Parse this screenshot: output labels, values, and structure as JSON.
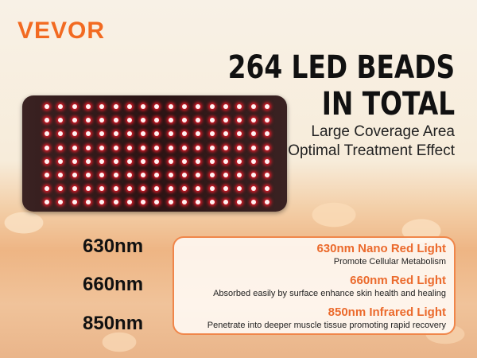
{
  "brand": {
    "logo": "VEVOR",
    "color": "#f26a21"
  },
  "headline": {
    "line1": "264 LED BEADS",
    "line2": "IN TOTAL"
  },
  "subheadline": {
    "line1": "Large Coverage Area",
    "line2": "Optimal Treatment Effect"
  },
  "product": {
    "led_rows": 8,
    "led_columns": 17,
    "led_color": "#ff1a2a"
  },
  "wavelengths": [
    {
      "label": "630nm",
      "title": "630nm Nano Red Light",
      "description": "Promote Cellular Metabolism"
    },
    {
      "label": "660nm",
      "title": "660nm Red Light",
      "description": "Absorbed easily by surface enhance skin health and healing"
    },
    {
      "label": "850nm",
      "title": "850nm Infrared Light",
      "description": "Penetrate into deeper muscle tissue promoting rapid recovery"
    }
  ],
  "accent_color": "#eb6a2c"
}
